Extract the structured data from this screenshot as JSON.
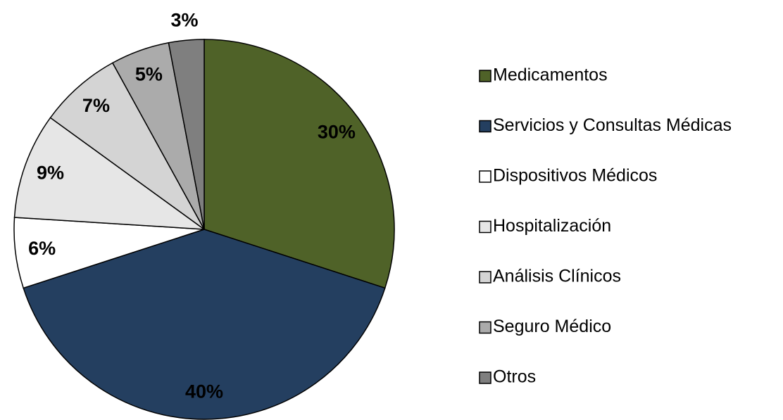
{
  "chart_data": {
    "type": "pie",
    "categories": [
      "Medicamentos",
      "Servicios y Consultas Médicas",
      "Dispositivos Médicos",
      "Hospitalización",
      "Análisis Clínicos",
      "Seguro Médico",
      "Otros"
    ],
    "values": [
      30,
      40,
      6,
      9,
      7,
      5,
      3
    ],
    "value_labels": [
      "30%",
      "40%",
      "6%",
      "9%",
      "7%",
      "5%",
      "3%"
    ],
    "colors": [
      "#4f6228",
      "#243f60",
      "#ffffff",
      "#e6e6e6",
      "#d4d4d4",
      "#ababab",
      "#7f7f7f"
    ],
    "legend": "right"
  }
}
